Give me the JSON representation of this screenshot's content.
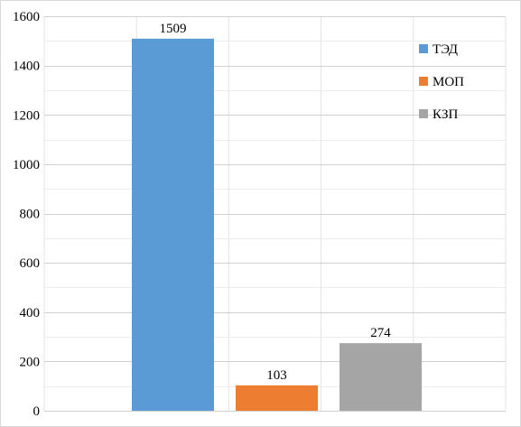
{
  "chart_data": {
    "type": "bar",
    "title": "",
    "xlabel": "",
    "ylabel": "",
    "ylim": [
      0,
      1600
    ],
    "yticks": [
      0,
      200,
      400,
      600,
      800,
      1000,
      1200,
      1400,
      1600
    ],
    "grid": true,
    "legend_position": "top-right",
    "series": [
      {
        "name": "ТЭД",
        "value": 1509,
        "color": "#5b9bd5"
      },
      {
        "name": "МОП",
        "value": 103,
        "color": "#ed7d31"
      },
      {
        "name": "КЗП",
        "value": 274,
        "color": "#a5a5a5"
      }
    ]
  }
}
